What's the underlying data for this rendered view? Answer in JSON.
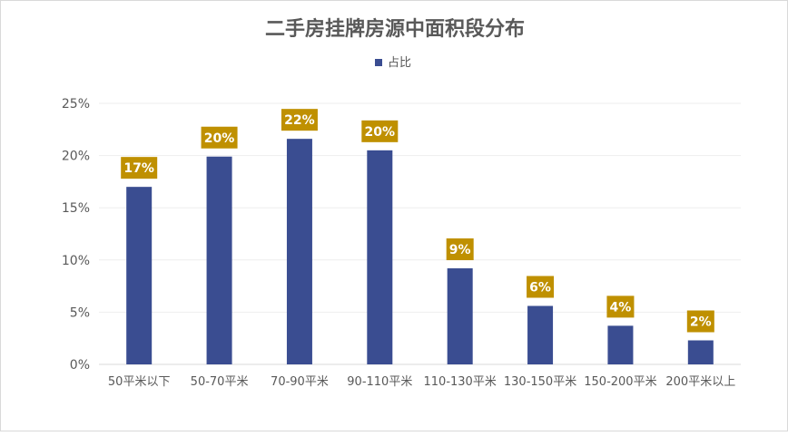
{
  "chart_data": {
    "type": "bar",
    "title": "二手房挂牌房源中面积段分布",
    "categories": [
      "50平米以下",
      "50-70平米",
      "70-90平米",
      "90-110平米",
      "110-130平米",
      "130-150平米",
      "150-200平米",
      "200平米以上"
    ],
    "series": [
      {
        "name": "占比",
        "values": [
          17,
          20,
          22,
          20,
          9,
          6,
          4,
          2
        ],
        "display_values": [
          17.0,
          19.9,
          21.6,
          20.5,
          9.2,
          5.6,
          3.7,
          2.3
        ]
      }
    ],
    "data_labels": [
      "17%",
      "20%",
      "22%",
      "20%",
      "9%",
      "6%",
      "4%",
      "2%"
    ],
    "y_ticks": [
      "0%",
      "5%",
      "10%",
      "15%",
      "20%",
      "25%"
    ],
    "ylim": [
      0,
      25
    ],
    "xlabel": "",
    "ylabel": "",
    "legend": {
      "label": "占比",
      "position": "top"
    },
    "grid": true,
    "colors": {
      "bar": "#3a4d91",
      "label_bg": "#bf9000",
      "label_text": "#ffffff",
      "title": "#595959",
      "axis_text": "#595959",
      "grid": "#eeeeee"
    }
  }
}
